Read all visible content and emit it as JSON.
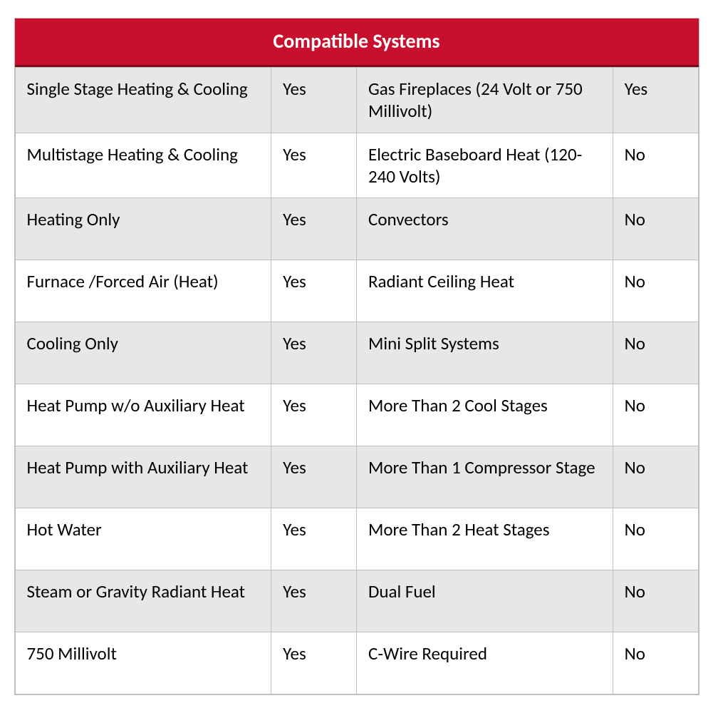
{
  "table": {
    "type": "table",
    "title": "Compatible Systems",
    "header_bg": "#c8102e",
    "header_fg": "#ffffff",
    "header_fontsize": 28,
    "cell_fontsize": 25,
    "cell_fg": "#000000",
    "row_bg_alt": "#e7e7e7",
    "row_bg_plain": "#ffffff",
    "border_color": "#bfbfbf",
    "column_widths_pct": [
      33,
      11,
      33,
      11
    ],
    "rows": [
      {
        "left_label": "Single Stage Heating & Cooling",
        "left_value": "Yes",
        "right_label": "Gas Fireplaces (24 Volt or 750 Millivolt)",
        "right_value": "Yes"
      },
      {
        "left_label": "Multistage Heating & Cooling",
        "left_value": "Yes",
        "right_label": "Electric Baseboard Heat (120-240 Volts)",
        "right_value": "No"
      },
      {
        "left_label": "Heating Only",
        "left_value": "Yes",
        "right_label": "Convectors",
        "right_value": "No"
      },
      {
        "left_label": "Furnace /Forced Air (Heat)",
        "left_value": "Yes",
        "right_label": "Radiant Ceiling Heat",
        "right_value": "No"
      },
      {
        "left_label": "Cooling Only",
        "left_value": "Yes",
        "right_label": "Mini Split Systems",
        "right_value": "No"
      },
      {
        "left_label": "Heat Pump w/o Auxiliary Heat",
        "left_value": "Yes",
        "right_label": "More Than 2 Cool Stages",
        "right_value": "No"
      },
      {
        "left_label": "Heat Pump with Auxiliary Heat",
        "left_value": "Yes",
        "right_label": "More Than 1 Compressor Stage",
        "right_value": "No"
      },
      {
        "left_label": "Hot Water",
        "left_value": "Yes",
        "right_label": "More Than 2 Heat Stages",
        "right_value": "No"
      },
      {
        "left_label": "Steam or Gravity Radiant Heat",
        "left_value": "Yes",
        "right_label": "Dual Fuel",
        "right_value": "No"
      },
      {
        "left_label": "750 Millivolt",
        "left_value": "Yes",
        "right_label": "C-Wire Required",
        "right_value": "No"
      }
    ]
  }
}
